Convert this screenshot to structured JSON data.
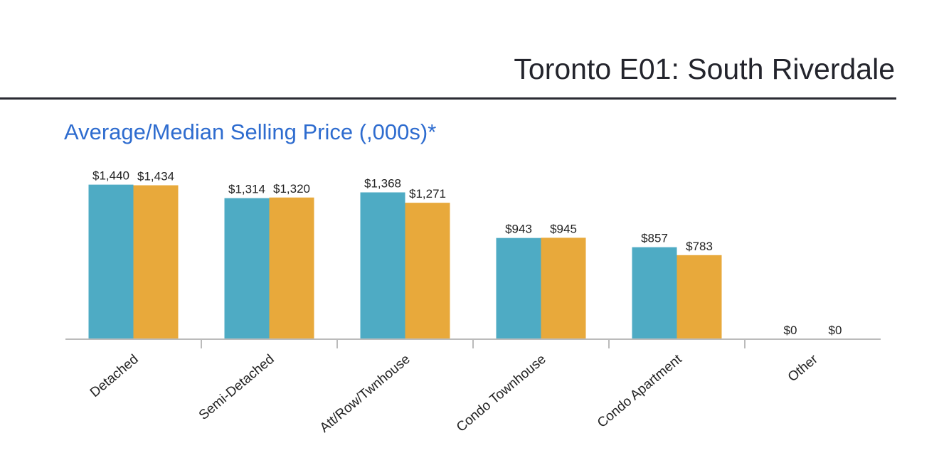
{
  "header": {
    "title": "Toronto E01: South Riverdale"
  },
  "chart_data": {
    "type": "bar",
    "title": "Average/Median Selling Price (,000s)*",
    "xlabel": "",
    "ylabel": "",
    "ylim": [
      0,
      1590
    ],
    "grid": false,
    "categories": [
      "Detached",
      "Semi-Detached",
      "Att/Row/Twnhouse",
      "Condo Townhouse",
      "Condo Apartment",
      "Other"
    ],
    "series": [
      {
        "name": "Average",
        "color": "#4eabc4",
        "values": [
          1440,
          1314,
          1368,
          943,
          857,
          0
        ],
        "labels": [
          "$1,440",
          "$1,314",
          "$1,368",
          "$943",
          "$857",
          "$0"
        ]
      },
      {
        "name": "Median",
        "color": "#e8a93b",
        "values": [
          1434,
          1320,
          1271,
          945,
          783,
          0
        ],
        "labels": [
          "$1,434",
          "$1,320",
          "$1,271",
          "$945",
          "$783",
          "$0"
        ]
      }
    ]
  }
}
